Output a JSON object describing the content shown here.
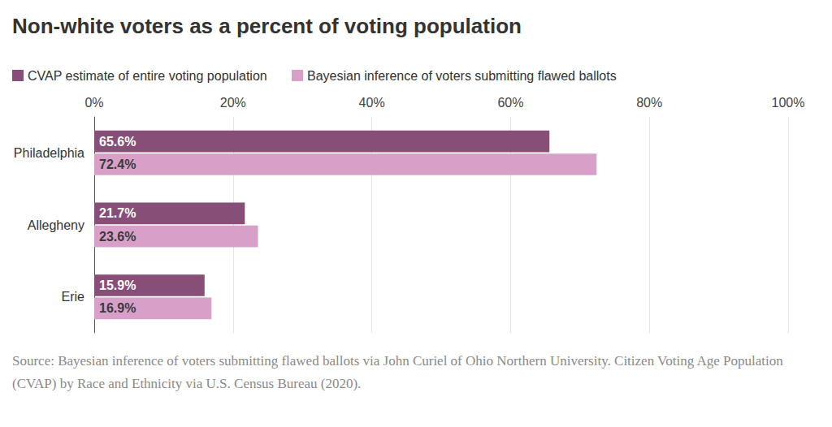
{
  "chart_data": {
    "type": "bar",
    "orientation": "horizontal",
    "title": "Non-white voters as a percent of voting population",
    "source": "Source: Bayesian inference of voters submitting flawed ballots via John Curiel of Ohio Northern University. Citizen Voting Age Population (CVAP) by Race and Ethnicity via U.S. Census Bureau (2020).",
    "categories": [
      "Philadelphia",
      "Allegheny",
      "Erie"
    ],
    "series": [
      {
        "name": "CVAP estimate of entire voting population",
        "color": "#874f77",
        "values": [
          65.6,
          21.7,
          15.9
        ],
        "value_labels": [
          "65.6%",
          "21.7%",
          "15.9%"
        ]
      },
      {
        "name": "Bayesian inference of voters submitting flawed ballots",
        "color": "#d8a0c9",
        "values": [
          72.4,
          23.6,
          16.9
        ],
        "value_labels": [
          "72.4%",
          "23.6%",
          "16.9%"
        ]
      }
    ],
    "xlim": [
      0,
      100
    ],
    "xticks": [
      {
        "value": 0,
        "label": "0%"
      },
      {
        "value": 20,
        "label": "20%"
      },
      {
        "value": 40,
        "label": "40%"
      },
      {
        "value": 60,
        "label": "60%"
      },
      {
        "value": 80,
        "label": "80%"
      },
      {
        "value": 100,
        "label": "100%"
      }
    ],
    "grid": true,
    "data_labels": true,
    "legend": "top-left"
  }
}
